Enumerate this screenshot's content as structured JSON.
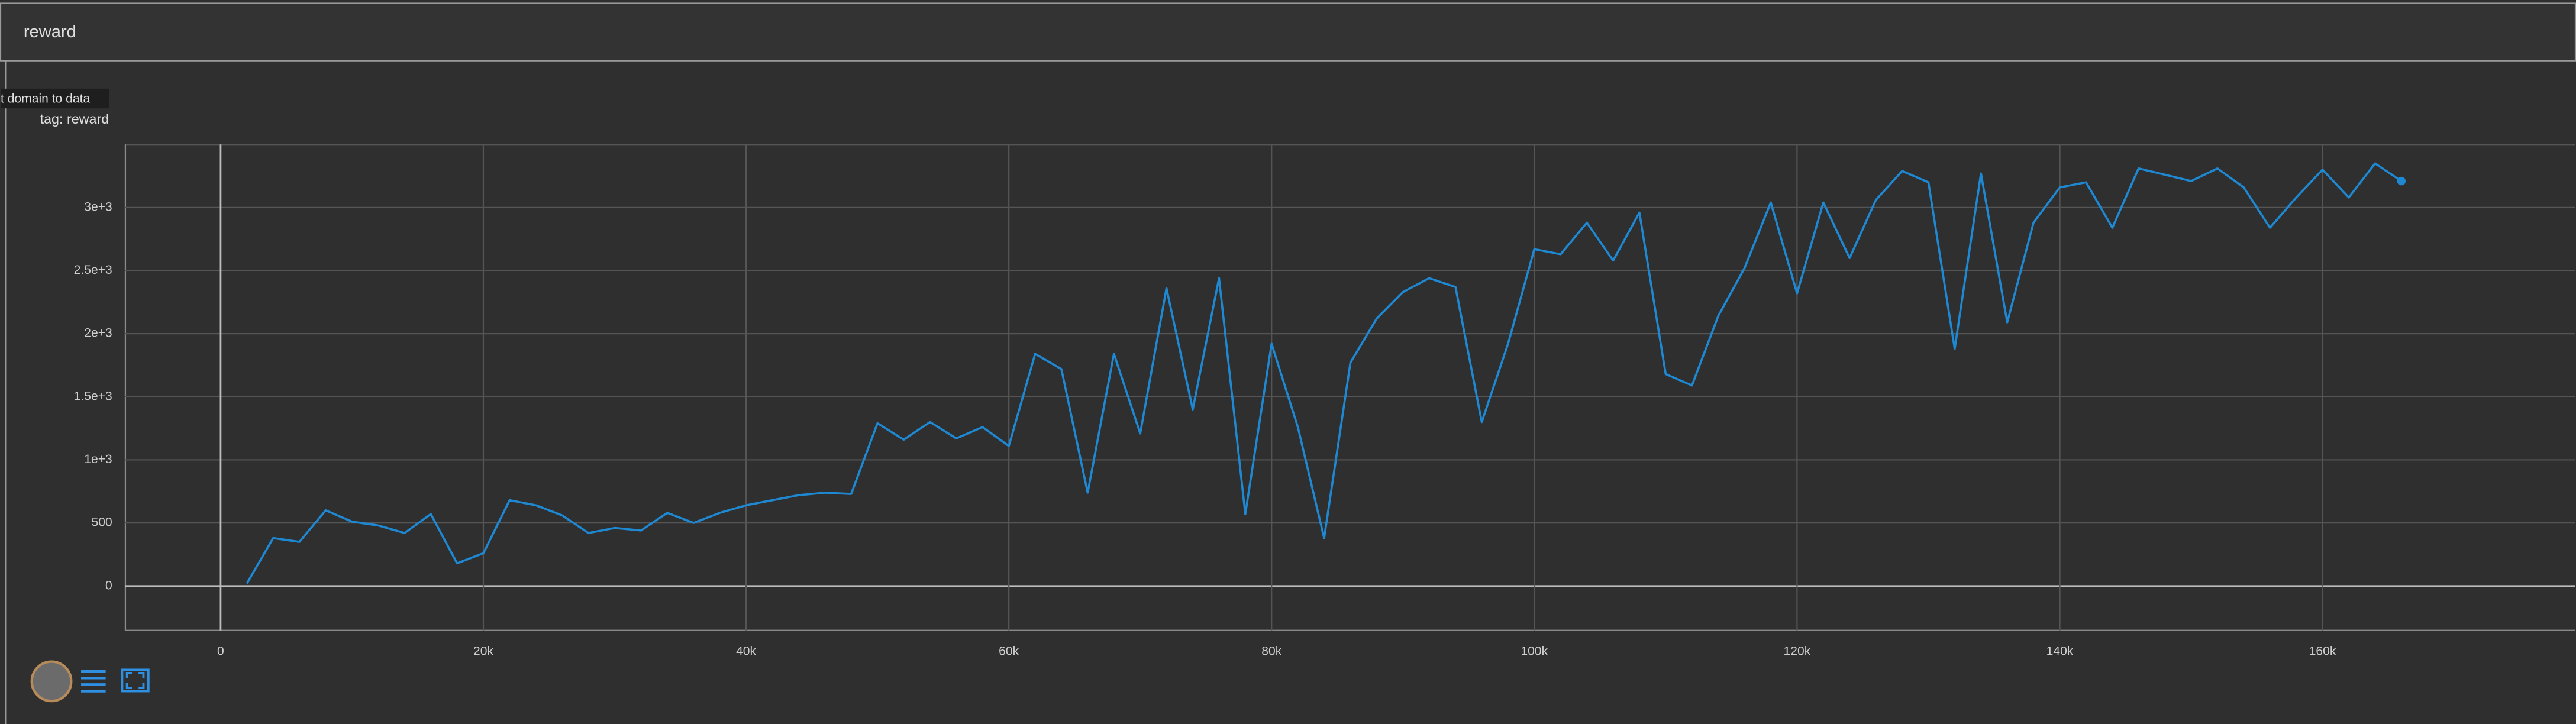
{
  "header": {
    "title": "reward"
  },
  "tooltip": "t domain to data",
  "tag_label": "tag: reward",
  "chart_data": {
    "type": "line",
    "color": "#1e88d2",
    "grid": true,
    "xlim": [
      -7250,
      179250
    ],
    "ylim": [
      -352,
      3500
    ],
    "xticks": [
      0,
      {
        "value": 20000,
        "label": "20k"
      },
      {
        "value": 40000,
        "label": "40k"
      },
      {
        "value": 60000,
        "label": "60k"
      },
      {
        "value": 80000,
        "label": "80k"
      },
      {
        "value": 100000,
        "label": "100k"
      },
      {
        "value": 120000,
        "label": "120k"
      },
      {
        "value": 140000,
        "label": "140k"
      },
      {
        "value": 160000,
        "label": "160k"
      }
    ],
    "yticks": [
      0,
      500,
      {
        "value": 1000,
        "label": "1e+3"
      },
      {
        "value": 1500,
        "label": "1.5e+3"
      },
      {
        "value": 2000,
        "label": "2e+3"
      },
      {
        "value": 2500,
        "label": "2.5e+3"
      },
      {
        "value": 3000,
        "label": "3e+3"
      }
    ],
    "x": [
      2000,
      4000,
      6000,
      8000,
      10000,
      12000,
      14000,
      16000,
      18000,
      20000,
      22000,
      24000,
      26000,
      28000,
      30000,
      32000,
      34000,
      36000,
      38000,
      40000,
      42000,
      44000,
      46000,
      48000,
      50000,
      52000,
      54000,
      56000,
      58000,
      60000,
      62000,
      64000,
      66000,
      68000,
      70000,
      72000,
      74000,
      76000,
      78000,
      80000,
      82000,
      84000,
      86000,
      88000,
      90000,
      92000,
      94000,
      96000,
      98000,
      100000,
      102000,
      104000,
      106000,
      108000,
      110000,
      112000,
      114000,
      116000,
      118000,
      120000,
      122000,
      124000,
      126000,
      128000,
      130000,
      132000,
      134000,
      136000,
      138000,
      140000,
      142000,
      144000,
      146000,
      148000,
      150000,
      152000,
      154000,
      156000,
      158000,
      160000,
      162000,
      164000,
      166000
    ],
    "values": [
      20,
      380,
      350,
      600,
      510,
      480,
      420,
      570,
      180,
      260,
      680,
      640,
      560,
      420,
      460,
      440,
      580,
      500,
      580,
      640,
      680,
      720,
      740,
      730,
      1290,
      1160,
      1300,
      1170,
      1260,
      1110,
      1840,
      1720,
      740,
      1840,
      1210,
      2360,
      1400,
      2440,
      570,
      1920,
      1260,
      380,
      1770,
      2120,
      2330,
      2440,
      2370,
      1300,
      1920,
      2670,
      2630,
      2880,
      2580,
      2960,
      1680,
      1590,
      2140,
      2520,
      3040,
      2320,
      3040,
      2600,
      3060,
      3290,
      3200,
      1880,
      3270,
      2090,
      2880,
      3160,
      3200,
      2840,
      3310,
      3260,
      3210,
      3310,
      3160,
      2840,
      3080,
      3300,
      3080,
      3350,
      3210
    ]
  }
}
